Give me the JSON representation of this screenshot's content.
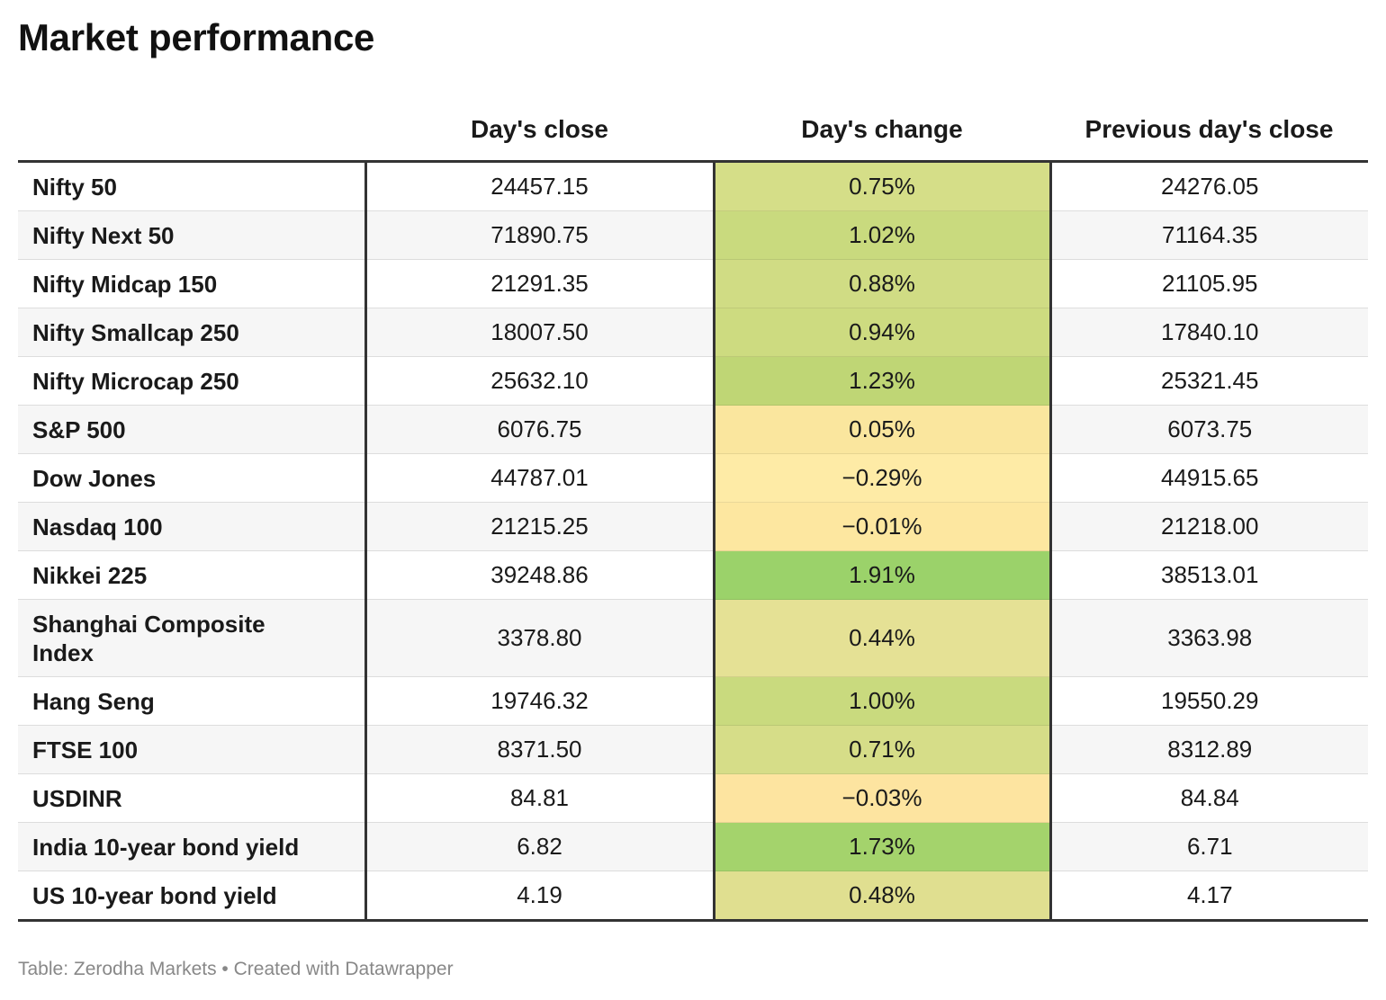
{
  "title": "Market performance",
  "footer": "Table: Zerodha Markets • Created with Datawrapper",
  "chart_data": {
    "type": "table",
    "columns": [
      "",
      "Day's close",
      "Day's change",
      "Previous day's close"
    ],
    "rows": [
      {
        "name": "Nifty 50",
        "close": "24457.15",
        "change": "0.75%",
        "prev": "24276.05",
        "change_color": "#d5de88"
      },
      {
        "name": "Nifty Next 50",
        "close": "71890.75",
        "change": "1.02%",
        "prev": "71164.35",
        "change_color": "#c9da7e"
      },
      {
        "name": "Nifty Midcap 150",
        "close": "21291.35",
        "change": "0.88%",
        "prev": "21105.95",
        "change_color": "#d0dc84"
      },
      {
        "name": "Nifty Smallcap 250",
        "close": "18007.50",
        "change": "0.94%",
        "prev": "17840.10",
        "change_color": "#cddb80"
      },
      {
        "name": "Nifty Microcap 250",
        "close": "25632.10",
        "change": "1.23%",
        "prev": "25321.45",
        "change_color": "#bfd675"
      },
      {
        "name": "S&P 500",
        "close": "6076.75",
        "change": "0.05%",
        "prev": "6073.75",
        "change_color": "#fae69e"
      },
      {
        "name": "Dow Jones",
        "close": "44787.01",
        "change": "−0.29%",
        "prev": "44915.65",
        "change_color": "#feeba6"
      },
      {
        "name": "Nasdaq 100",
        "close": "21215.25",
        "change": "−0.01%",
        "prev": "21218.00",
        "change_color": "#fde7a0"
      },
      {
        "name": "Nikkei 225",
        "close": "39248.86",
        "change": "1.91%",
        "prev": "38513.01",
        "change_color": "#9bd26a"
      },
      {
        "name": "Shanghai Composite Index",
        "close": "3378.80",
        "change": "0.44%",
        "prev": "3363.98",
        "change_color": "#e5e195",
        "tall": true
      },
      {
        "name": "Hang Seng",
        "close": "19746.32",
        "change": "1.00%",
        "prev": "19550.29",
        "change_color": "#c9da7e"
      },
      {
        "name": "FTSE 100",
        "close": "8371.50",
        "change": "0.71%",
        "prev": "8312.89",
        "change_color": "#d6dd88"
      },
      {
        "name": "USDINR",
        "close": "84.81",
        "change": "−0.03%",
        "prev": "84.84",
        "change_color": "#fde4a0"
      },
      {
        "name": "India 10-year bond yield",
        "close": "6.82",
        "change": "1.73%",
        "prev": "6.71",
        "change_color": "#a4d36c"
      },
      {
        "name": "US 10-year bond yield",
        "close": "4.19",
        "change": "0.48%",
        "prev": "4.17",
        "change_color": "#e0df90"
      }
    ]
  }
}
